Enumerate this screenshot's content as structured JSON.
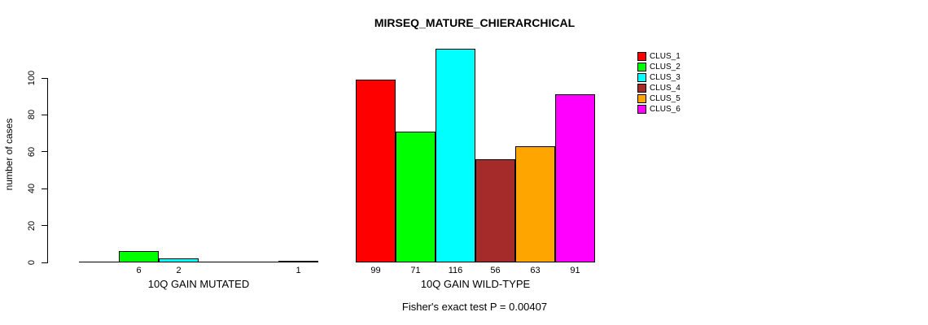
{
  "chart_data": {
    "type": "bar",
    "title": "MIRSEQ_MATURE_CHIERARCHICAL",
    "ylabel": "number of cases",
    "xlabel": "",
    "ylim": [
      0,
      116
    ],
    "yticks": [
      0,
      20,
      40,
      60,
      80,
      100
    ],
    "grid": false,
    "legend_position": "top-right",
    "categories": [
      "10Q GAIN MUTATED",
      "10Q GAIN WILD-TYPE"
    ],
    "series": [
      {
        "name": "CLUS_1",
        "color": "#FF0000",
        "values": [
          0,
          99
        ]
      },
      {
        "name": "CLUS_2",
        "color": "#00FF00",
        "values": [
          6,
          71
        ]
      },
      {
        "name": "CLUS_3",
        "color": "#00FFFF",
        "values": [
          2,
          116
        ]
      },
      {
        "name": "CLUS_4",
        "color": "#A52A2A",
        "values": [
          0,
          56
        ]
      },
      {
        "name": "CLUS_5",
        "color": "#FFA500",
        "values": [
          0,
          63
        ]
      },
      {
        "name": "CLUS_6",
        "color": "#FF00FF",
        "values": [
          1,
          91
        ]
      }
    ],
    "annotation": "Fisher's exact test P = 0.00407",
    "bar_value_labels_shown_only_when_nonzero": true
  }
}
